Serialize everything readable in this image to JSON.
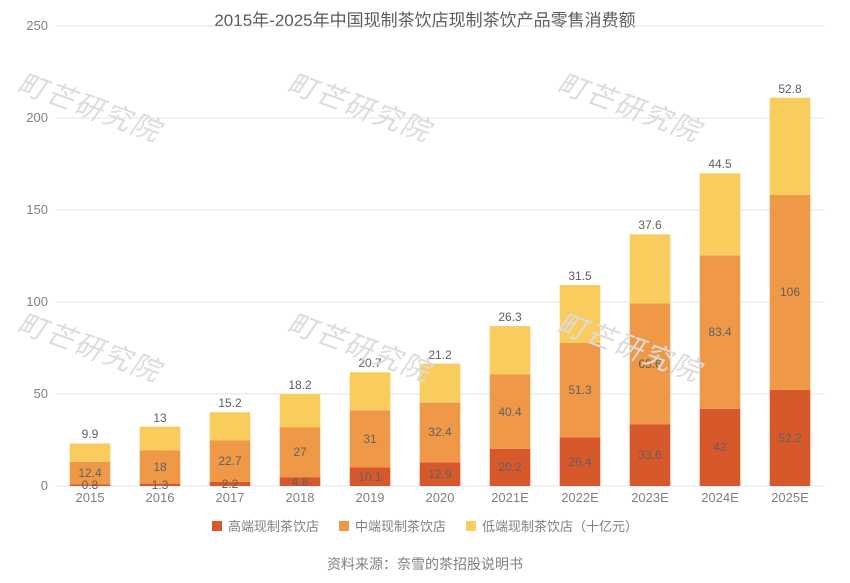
{
  "chart": {
    "type": "stacked-bar",
    "title": "2015年-2025年中国现制茶饮店现制茶饮产品零售消费额",
    "title_fontsize": 17,
    "title_color": "#5a5a5a",
    "background_color": "#ffffff",
    "grid_color": "#cccccc",
    "label_color": "#808080",
    "label_fontsize": 13,
    "value_label_fontsize": 12,
    "value_label_color": "#606060",
    "categories": [
      "2015",
      "2016",
      "2017",
      "2018",
      "2019",
      "2020",
      "2021E",
      "2022E",
      "2023E",
      "2024E",
      "2025E"
    ],
    "series": [
      {
        "name": "高端现制茶饮店",
        "color": "#d7582b",
        "values": [
          0.8,
          1.3,
          2.2,
          4.8,
          10.1,
          12.9,
          20.2,
          26.4,
          33.6,
          42.0,
          52.2
        ]
      },
      {
        "name": "中端现制茶饮店",
        "color": "#ef9948",
        "values": [
          12.4,
          18.0,
          22.7,
          27.0,
          31.0,
          32.4,
          40.4,
          51.3,
          65.6,
          83.4,
          106.0
        ]
      },
      {
        "name": "低端现制茶饮店（十亿元）",
        "color": "#f9cc5e",
        "values": [
          9.9,
          13.0,
          15.2,
          18.2,
          20.7,
          21.2,
          26.3,
          31.5,
          37.6,
          44.5,
          52.8
        ]
      }
    ],
    "ylim": [
      0,
      250
    ],
    "ytick_step": 50,
    "bar_width_ratio": 0.58,
    "source": "资料来源：奈雪的茶招股说明书",
    "watermark_text": "町芒研究院"
  }
}
